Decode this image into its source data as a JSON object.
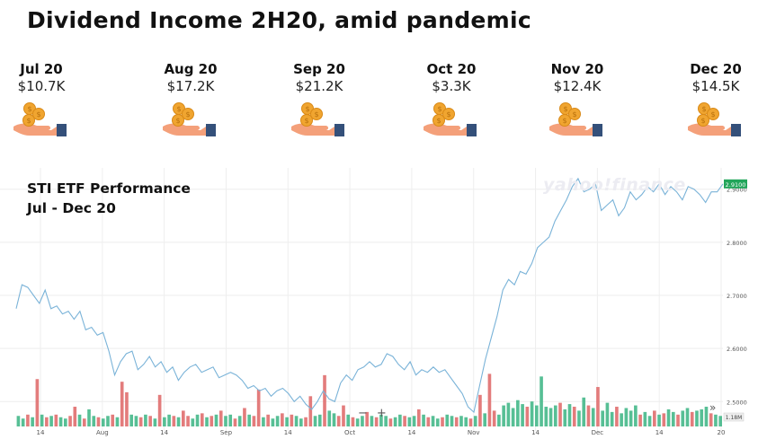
{
  "title": "Dividend Income 2H20, amid pandemic",
  "months": [
    {
      "label": "Jul 20",
      "amount": "$10.7K"
    },
    {
      "label": "Aug 20",
      "amount": "$17.2K"
    },
    {
      "label": "Sep 20",
      "amount": "$21.2K"
    },
    {
      "label": "Oct 20",
      "amount": "$3.3K"
    },
    {
      "label": "Nov 20",
      "amount": "$12.4K"
    },
    {
      "label": "Dec 20",
      "amount": "$14.5K"
    }
  ],
  "icon": "hand-with-coins-icon",
  "colors": {
    "line": "#7ab3d8",
    "up_volume": "#45b889",
    "down_volume": "#e06e6e",
    "grid": "#eeeeee",
    "coin": "#f0a530",
    "hand": "#f4a07a",
    "cuff": "#34507a",
    "last_price_badge": "#22a55a"
  },
  "chart_title_lines": [
    "STI ETF Performance",
    "Jul - Dec 20"
  ],
  "watermark": "yahoo!finance",
  "controls": {
    "zoom_out": "−",
    "zoom_in": "+",
    "expand": "»"
  },
  "chart_data": {
    "type": "line",
    "title": "STI ETF Performance Jul - Dec 20",
    "x_tick_labels": [
      "14",
      "Aug",
      "14",
      "Sep",
      "14",
      "Oct",
      "14",
      "Nov",
      "14",
      "Dec",
      "14",
      "20"
    ],
    "y_tick_labels": [
      "2.9000",
      "2.8000",
      "2.7000",
      "2.6000",
      "2.5000"
    ],
    "ylim": [
      2.47,
      2.93
    ],
    "last_price": "2.9100",
    "volume_label": "1.18M",
    "grid": true,
    "series": [
      {
        "values": [
          2.675,
          2.72,
          2.715,
          2.7,
          2.685,
          2.71,
          2.675,
          2.68,
          2.665,
          2.67,
          2.655,
          2.67,
          2.635,
          2.64,
          2.625,
          2.63,
          2.595,
          2.55,
          2.575,
          2.59,
          2.595,
          2.56,
          2.57,
          2.585,
          2.565,
          2.575,
          2.555,
          2.565,
          2.54,
          2.555,
          2.565,
          2.57,
          2.555,
          2.56,
          2.565,
          2.545,
          2.55,
          2.555,
          2.55,
          2.54,
          2.525,
          2.53,
          2.52,
          2.525,
          2.51,
          2.52,
          2.525,
          2.515,
          2.5,
          2.51,
          2.495,
          2.485,
          2.5,
          2.52,
          2.505,
          2.5,
          2.535,
          2.55,
          2.54,
          2.56,
          2.565,
          2.575,
          2.565,
          2.57,
          2.59,
          2.585,
          2.57,
          2.56,
          2.575,
          2.55,
          2.56,
          2.555,
          2.565,
          2.555,
          2.56,
          2.545,
          2.53,
          2.515,
          2.49,
          2.48,
          2.53,
          2.58,
          2.62,
          2.66,
          2.71,
          2.73,
          2.72,
          2.745,
          2.74,
          2.76,
          2.79,
          2.8,
          2.81,
          2.84,
          2.86,
          2.88,
          2.905,
          2.92,
          2.895,
          2.9,
          2.91,
          2.86,
          2.87,
          2.88,
          2.85,
          2.865,
          2.895,
          2.88,
          2.89,
          2.905,
          2.895,
          2.91,
          2.89,
          2.905,
          2.895,
          2.88,
          2.905,
          2.9,
          2.89,
          2.875,
          2.895,
          2.895,
          2.91
        ]
      }
    ],
    "volume": {
      "values": [
        0.8,
        0.6,
        0.9,
        0.7,
        3.6,
        0.9,
        0.7,
        0.8,
        0.9,
        0.7,
        0.6,
        0.8,
        1.5,
        0.9,
        0.6,
        1.3,
        0.8,
        0.7,
        0.6,
        0.8,
        0.9,
        0.7,
        3.4,
        2.6,
        0.9,
        0.8,
        0.7,
        0.9,
        0.8,
        0.6,
        2.4,
        0.7,
        0.9,
        0.8,
        0.7,
        1.2,
        0.8,
        0.6,
        0.9,
        1.0,
        0.7,
        0.8,
        0.9,
        1.2,
        0.8,
        0.9,
        0.6,
        0.8,
        1.4,
        0.9,
        0.8,
        2.8,
        0.7,
        0.9,
        0.6,
        0.8,
        1.0,
        0.7,
        0.9,
        0.8,
        0.6,
        0.7,
        2.3,
        0.8,
        0.9,
        3.9,
        1.2,
        1.0,
        0.8,
        1.6,
        0.9,
        0.7,
        0.6,
        0.8,
        1.1,
        0.8,
        0.7,
        0.9,
        0.8,
        0.6,
        0.7,
        0.9,
        0.8,
        0.7,
        0.8,
        1.3,
        0.9,
        0.7,
        0.8,
        0.6,
        0.7,
        0.9,
        0.8,
        0.7,
        0.8,
        0.7,
        0.6,
        0.8,
        2.4,
        1.0,
        4.0,
        1.2,
        0.9,
        1.6,
        1.8,
        1.4,
        2.0,
        1.7,
        1.5,
        1.9,
        1.6,
        3.8,
        1.5,
        1.4,
        1.6,
        1.8,
        1.3,
        1.7,
        1.5,
        1.2,
        2.2,
        1.6,
        1.4,
        3.0,
        1.2,
        1.8,
        1.1,
        1.5,
        1.0,
        1.4,
        1.2,
        1.6,
        0.9,
        1.1,
        0.8,
        1.2,
        0.9,
        1.0,
        1.3,
        1.1,
        0.9,
        1.2,
        1.4,
        1.1,
        1.2,
        1.3,
        1.5,
        1.0,
        0.9,
        0.8
      ],
      "up": [
        1,
        1,
        0,
        1,
        0,
        1,
        0,
        1,
        0,
        1,
        1,
        0,
        0,
        1,
        0,
        1,
        1,
        0,
        1,
        1,
        0,
        1,
        0,
        0,
        1,
        1,
        0,
        1,
        0,
        1,
        0,
        1,
        1,
        0,
        1,
        0,
        0,
        1,
        1,
        0,
        1,
        0,
        1,
        0,
        1,
        1,
        0,
        1,
        0,
        1,
        0,
        0,
        1,
        0,
        1,
        1,
        0,
        1,
        0,
        1,
        1,
        0,
        0,
        1,
        1,
        0,
        1,
        1,
        0,
        0,
        1,
        0,
        1,
        1,
        0,
        1,
        0,
        1,
        1,
        0,
        1,
        1,
        0,
        1,
        1,
        0,
        1,
        0,
        1,
        1,
        0,
        1,
        1,
        0,
        1,
        1,
        0,
        1,
        0,
        1,
        0,
        0,
        1,
        1,
        1,
        1,
        1,
        1,
        0,
        1,
        1,
        1,
        1,
        1,
        1,
        0,
        1,
        1,
        0,
        1,
        1,
        0,
        1,
        0,
        1,
        1,
        1,
        0,
        1,
        1,
        1,
        1,
        0,
        1,
        1,
        0,
        1,
        0,
        1,
        1,
        0,
        1,
        1,
        0,
        1,
        1,
        1,
        0,
        1,
        1
      ]
    }
  }
}
